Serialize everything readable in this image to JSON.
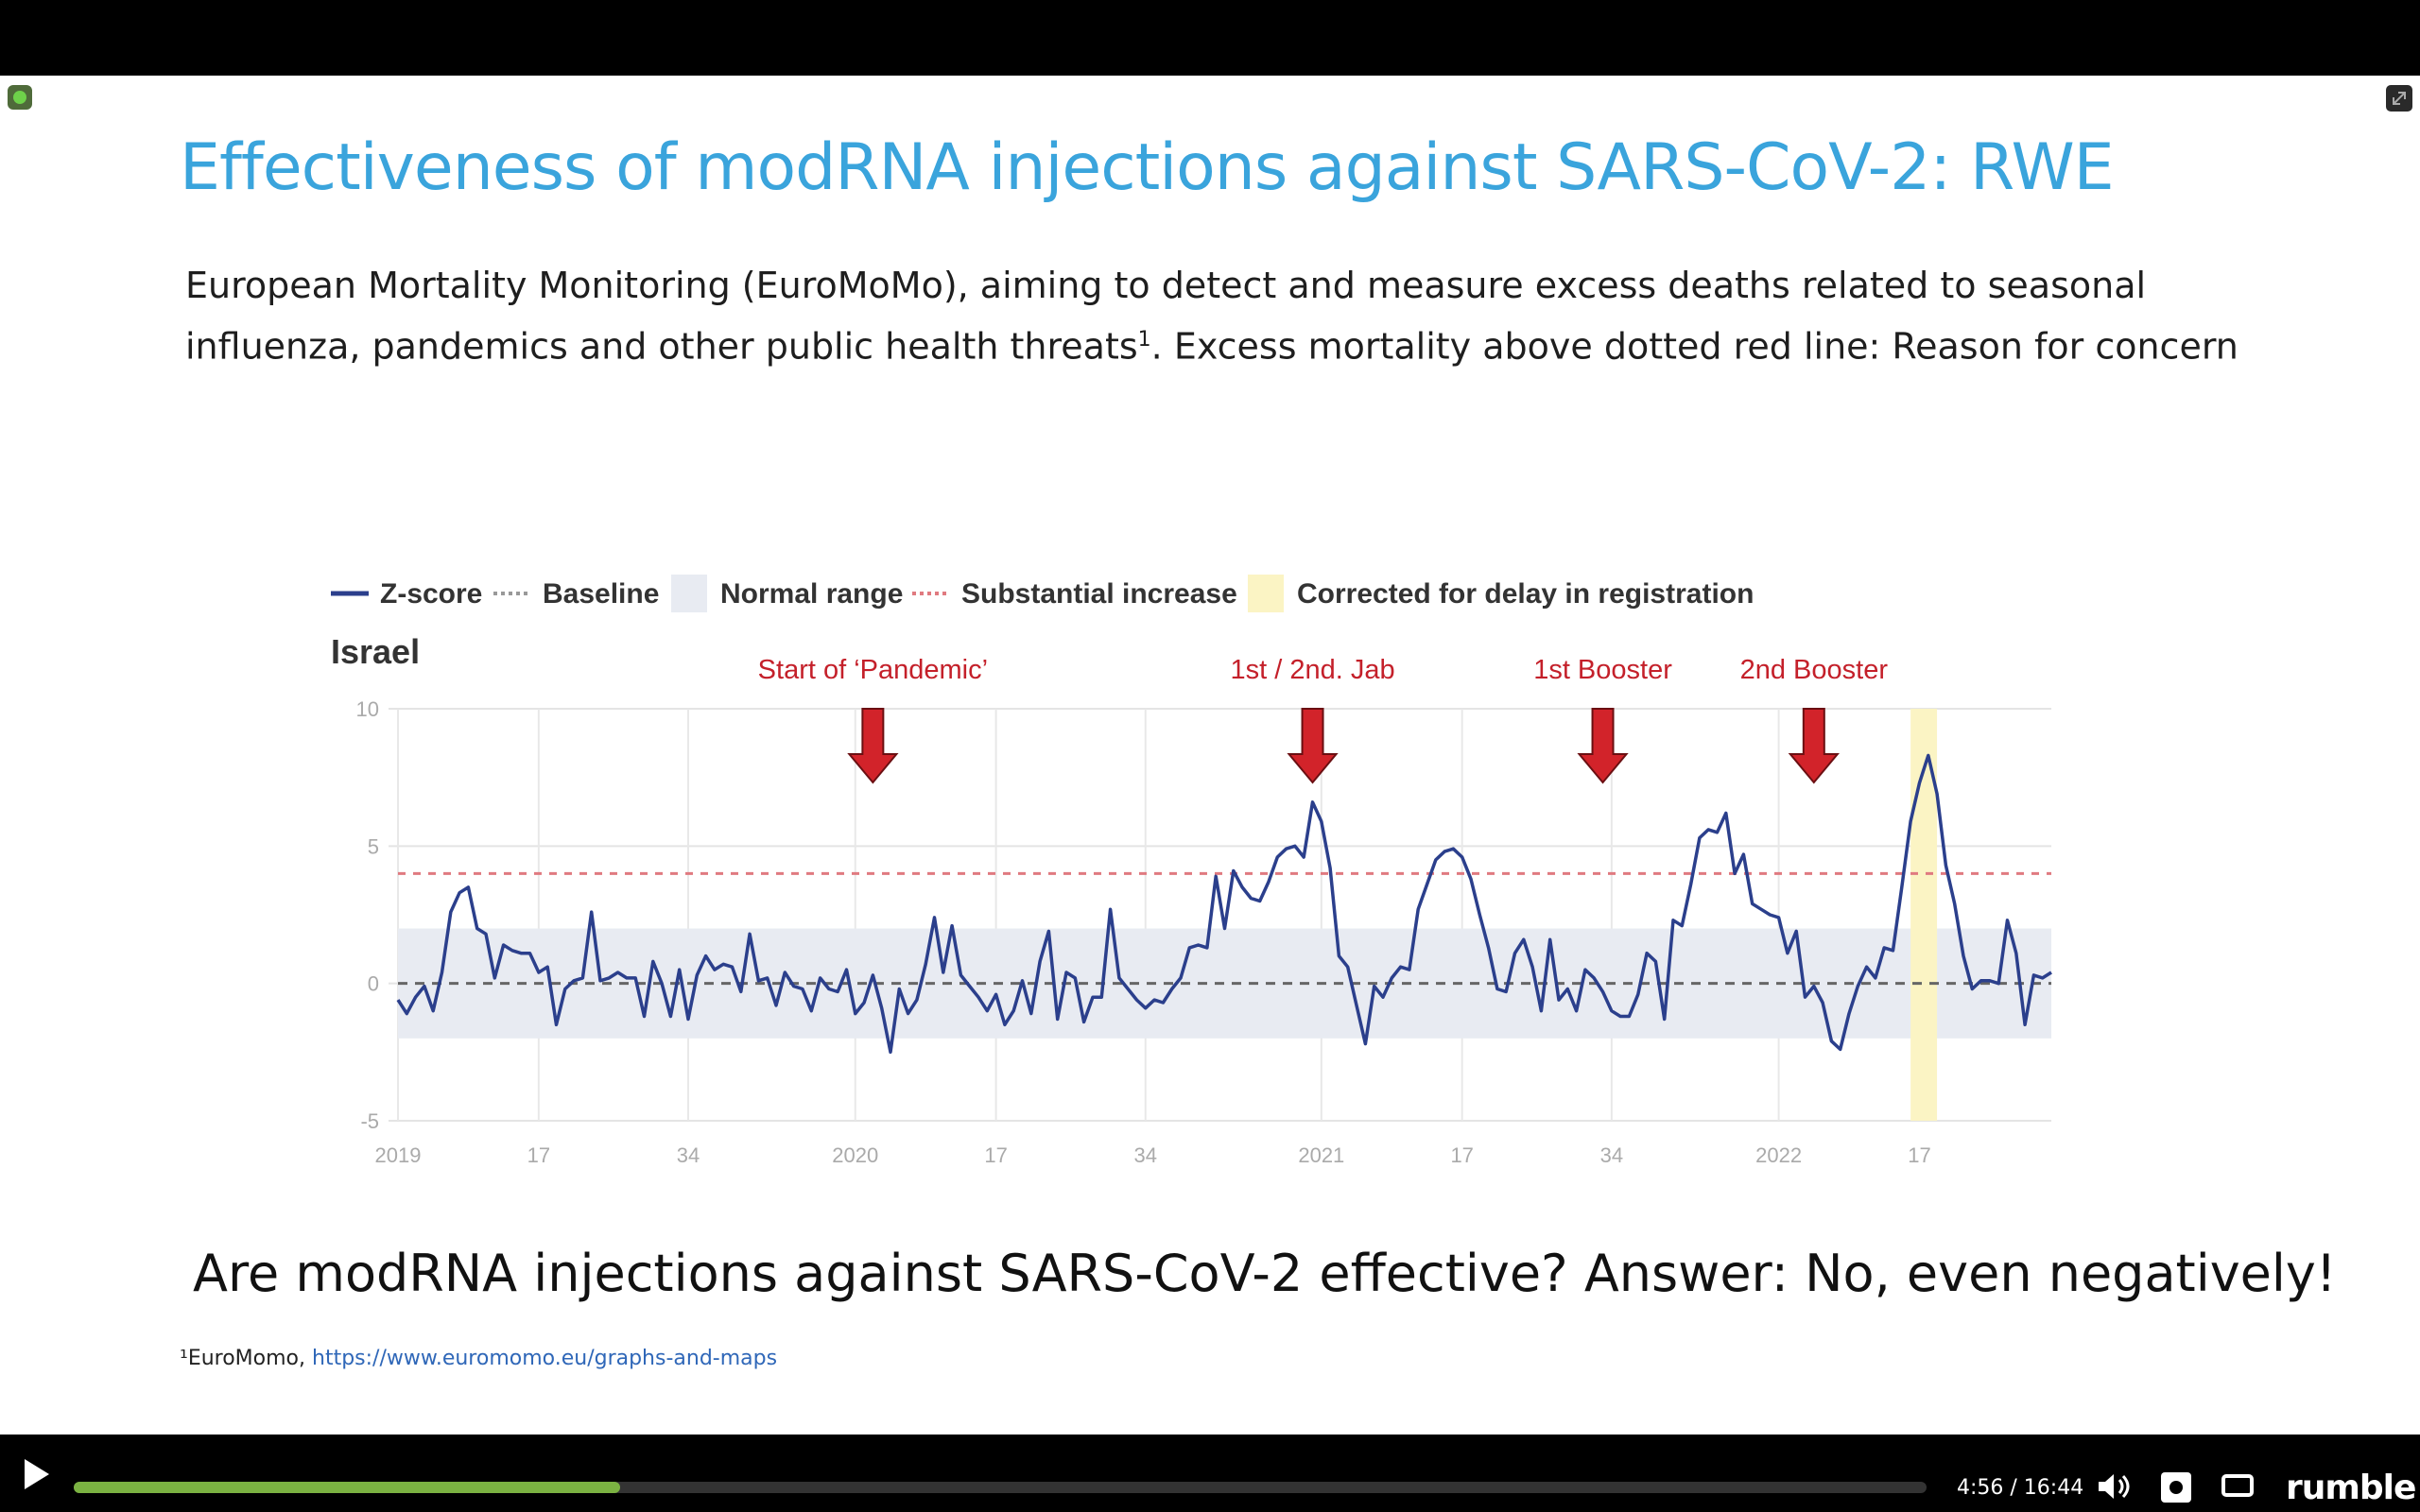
{
  "slide": {
    "title": "Effectiveness of modRNA injections against SARS-CoV-2: RWE",
    "intro_line1": "European Mortality Monitoring (EuroMoMo), aiming to detect and measure excess deaths related to seasonal",
    "intro_line2a": "influenza, pandemics and other public health threats",
    "intro_sup": "1",
    "intro_line2b": ". Excess mortality above dotted red line: Reason for concern",
    "question": "Are modRNA injections against SARS-CoV-2 effective? Answer: No, even negatively!",
    "footnote_prefix": "¹EuroMomo,",
    "footnote_link": "https://www.euromomo.eu/graphs-and-maps"
  },
  "legend": [
    {
      "label": "Z-score",
      "swatch": "solid"
    },
    {
      "label": "Baseline",
      "swatch": "dotted-gray"
    },
    {
      "label": "Normal range",
      "swatch": "box-gray"
    },
    {
      "label": "Substantial increase",
      "swatch": "dotted-red"
    },
    {
      "label": "Corrected for delay in registration",
      "swatch": "box-yellow"
    }
  ],
  "annotations": [
    {
      "label": "Start of ‘Pandemic’",
      "week_index": 54
    },
    {
      "label": "1st / 2nd. Jab",
      "week_index": 104
    },
    {
      "label": "1st Booster",
      "week_index": 137
    },
    {
      "label": "2nd Booster",
      "week_index": 161
    }
  ],
  "chart_data": {
    "type": "line",
    "title": "Israel",
    "country": "Israel",
    "x_tick_labels": [
      "2019",
      "17",
      "34",
      "2020",
      "17",
      "34",
      "2021",
      "17",
      "34",
      "2022",
      "17"
    ],
    "x_tick_week_index": [
      0,
      16,
      33,
      52,
      68,
      85,
      105,
      121,
      138,
      157,
      173
    ],
    "y_ticks": [
      -5,
      0,
      5,
      10
    ],
    "ylim": [
      -5,
      10
    ],
    "baseline": 0,
    "normal_range": [
      -2,
      2
    ],
    "substantial_increase": 4,
    "corrected_region_week_index": [
      172,
      175
    ],
    "series": [
      {
        "name": "Z-score",
        "color": "#2b3f8c",
        "values": [
          -0.6,
          -1.1,
          -0.5,
          -0.1,
          -1.0,
          0.4,
          2.6,
          3.3,
          3.5,
          2.0,
          1.8,
          0.2,
          1.4,
          1.2,
          1.1,
          1.1,
          0.4,
          0.6,
          -1.5,
          -0.2,
          0.1,
          0.2,
          2.6,
          0.1,
          0.2,
          0.4,
          0.2,
          0.2,
          -1.2,
          0.8,
          0.0,
          -1.2,
          0.5,
          -1.3,
          0.3,
          1.0,
          0.5,
          0.7,
          0.6,
          -0.3,
          1.8,
          0.1,
          0.2,
          -0.8,
          0.4,
          -0.1,
          -0.2,
          -1.0,
          0.2,
          -0.2,
          -0.3,
          0.5,
          -1.1,
          -0.7,
          0.3,
          -0.9,
          -2.5,
          -0.2,
          -1.1,
          -0.6,
          0.7,
          2.4,
          0.4,
          2.1,
          0.3,
          -0.1,
          -0.5,
          -1.0,
          -0.4,
          -1.5,
          -1.0,
          0.1,
          -1.1,
          0.8,
          1.9,
          -1.3,
          0.4,
          0.2,
          -1.4,
          -0.5,
          -0.5,
          2.7,
          0.2,
          -0.2,
          -0.6,
          -0.9,
          -0.6,
          -0.7,
          -0.2,
          0.2,
          1.3,
          1.4,
          1.3,
          3.9,
          2.0,
          4.1,
          3.5,
          3.1,
          3.0,
          3.7,
          4.6,
          4.9,
          5.0,
          4.6,
          6.6,
          5.9,
          4.2,
          1.0,
          0.6,
          -0.8,
          -2.2,
          -0.1,
          -0.5,
          0.2,
          0.6,
          0.5,
          2.7,
          3.6,
          4.5,
          4.8,
          4.9,
          4.6,
          3.8,
          2.5,
          1.3,
          -0.2,
          -0.3,
          1.1,
          1.6,
          0.6,
          -1.0,
          1.6,
          -0.6,
          -0.2,
          -1.0,
          0.5,
          0.2,
          -0.3,
          -1.0,
          -1.2,
          -1.2,
          -0.4,
          1.1,
          0.8,
          -1.3,
          2.3,
          2.1,
          3.6,
          5.3,
          5.6,
          5.5,
          6.2,
          4.0,
          4.7,
          2.9,
          2.7,
          2.5,
          2.4,
          1.1,
          1.9,
          -0.5,
          -0.1,
          -0.7,
          -2.1,
          -2.4,
          -1.1,
          -0.1,
          0.6,
          0.2,
          1.3,
          1.2,
          3.5,
          5.9,
          7.3,
          8.3,
          6.9,
          4.3,
          2.9,
          1.0,
          -0.2,
          0.1,
          0.1,
          0.0,
          2.3,
          1.1,
          -1.5,
          0.3,
          0.2,
          0.4
        ]
      }
    ]
  },
  "player": {
    "time": "4:56 / 16:44",
    "progress": 0.295,
    "brand": "rumble",
    "progress_color": "#7bb242",
    "icons": [
      "play-icon",
      "volume-icon",
      "settings-icon",
      "theater-mode-icon"
    ]
  }
}
